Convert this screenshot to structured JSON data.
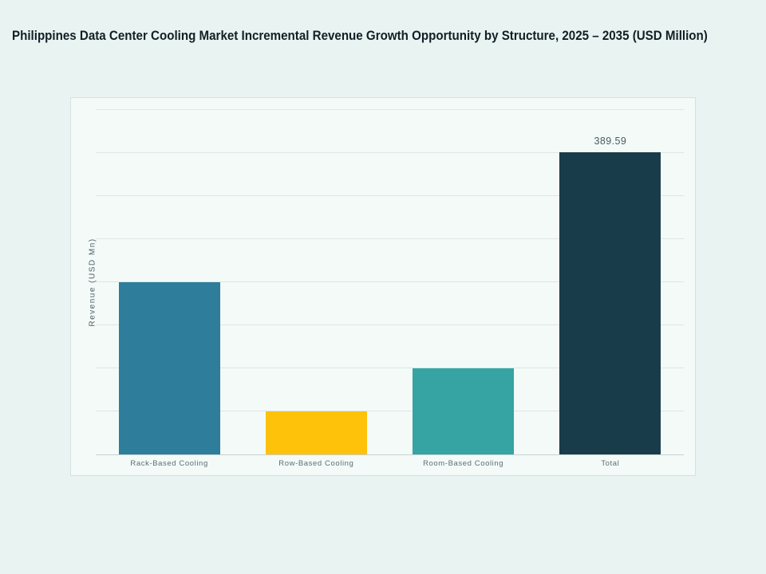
{
  "page": {
    "title": "Philippines Data Center Cooling Market Incremental Revenue Growth Opportunity by Structure, 2025 – 2035 (USD Million)"
  },
  "chart_data": {
    "type": "bar",
    "title": "Philippines Data Center Cooling Market Incremental Revenue Growth Opportunity by Structure, 2025 – 2035 (USD Million)",
    "xlabel": "",
    "ylabel": "Revenue (USD Mn)",
    "categories": [
      "Rack-Based Cooling",
      "Row-Based Cooling",
      "Room-Based Cooling",
      "Total"
    ],
    "values": [
      222.62,
      55.66,
      111.31,
      389.59
    ],
    "data_labels": [
      "",
      "",
      "",
      "389.59"
    ],
    "bar_colors": [
      "#2E7D9B",
      "#FEC20A",
      "#35A4A3",
      "#183C49"
    ],
    "ylim": [
      0,
      445.25
    ],
    "grid": true,
    "gridline_divisions": 8,
    "y_tick_labels_visible": false,
    "legend": false
  },
  "colors": {
    "page_bg": "#E9F4F2",
    "panel_bg": "#F3FAF8",
    "panel_border": "#D7E0DE",
    "gridline": "#DDE7E5",
    "axis_line": "#C6D2D0",
    "title_text": "#121F26",
    "category_label_text": "#5D6E72",
    "value_label_text": "#4B5A61",
    "y_axis_label_text": "#4E5E62"
  }
}
